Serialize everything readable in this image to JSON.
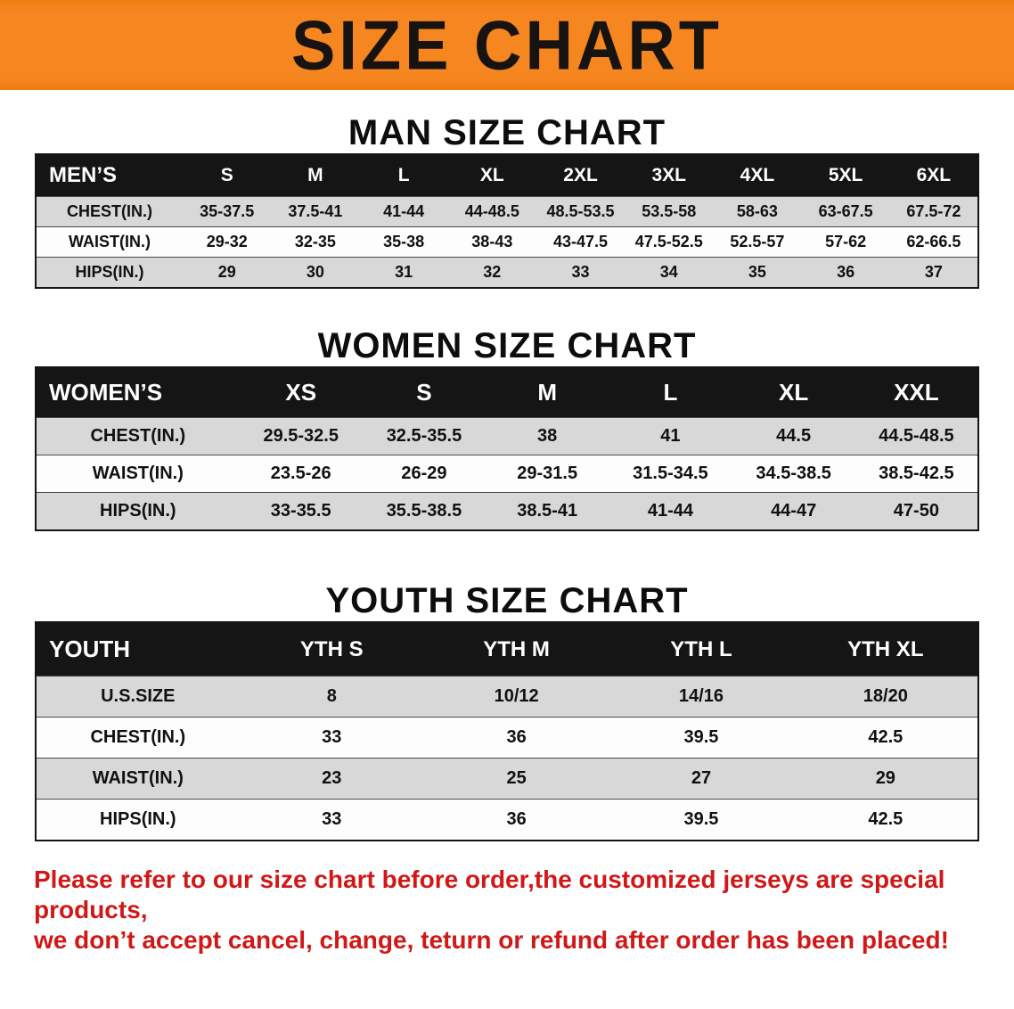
{
  "banner": {
    "title": "SIZE CHART"
  },
  "colors": {
    "banner_bg": "#F6861F",
    "table_header_bg": "#151515",
    "row_alt_gray": "#D8D8D8",
    "notice_red": "#D01818"
  },
  "sections": [
    {
      "heading": "MAN SIZE CHART",
      "table": {
        "header": [
          "MEN’S",
          "S",
          "M",
          "L",
          "XL",
          "2XL",
          "3XL",
          "4XL",
          "5XL",
          "6XL"
        ],
        "rows": [
          [
            "CHEST(IN.)",
            "35-37.5",
            "37.5-41",
            "41-44",
            "44-48.5",
            "48.5-53.5",
            "53.5-58",
            "58-63",
            "63-67.5",
            "67.5-72"
          ],
          [
            "WAIST(IN.)",
            "29-32",
            "32-35",
            "35-38",
            "38-43",
            "43-47.5",
            "47.5-52.5",
            "52.5-57",
            "57-62",
            "62-66.5"
          ],
          [
            "HIPS(IN.)",
            "29",
            "30",
            "31",
            "32",
            "33",
            "34",
            "35",
            "36",
            "37"
          ]
        ]
      }
    },
    {
      "heading": "WOMEN SIZE CHART",
      "table": {
        "header": [
          "WOMEN’S",
          "XS",
          "S",
          "M",
          "L",
          "XL",
          "XXL"
        ],
        "rows": [
          [
            "CHEST(IN.)",
            "29.5-32.5",
            "32.5-35.5",
            "38",
            "41",
            "44.5",
            "44.5-48.5"
          ],
          [
            "WAIST(IN.)",
            "23.5-26",
            "26-29",
            "29-31.5",
            "31.5-34.5",
            "34.5-38.5",
            "38.5-42.5"
          ],
          [
            "HIPS(IN.)",
            "33-35.5",
            "35.5-38.5",
            "38.5-41",
            "41-44",
            "44-47",
            "47-50"
          ]
        ]
      }
    },
    {
      "heading": "YOUTH SIZE CHART",
      "table": {
        "header": [
          "YOUTH",
          "YTH S",
          "YTH M",
          "YTH L",
          "YTH XL"
        ],
        "rows": [
          [
            "U.S.SIZE",
            "8",
            "10/12",
            "14/16",
            "18/20"
          ],
          [
            "CHEST(IN.)",
            "33",
            "36",
            "39.5",
            "42.5"
          ],
          [
            "WAIST(IN.)",
            "23",
            "25",
            "27",
            "29"
          ],
          [
            "HIPS(IN.)",
            "33",
            "36",
            "39.5",
            "42.5"
          ]
        ]
      }
    }
  ],
  "footer": {
    "line1": "Please refer to our size chart before order,the customized jerseys are special products,",
    "line2": "we don’t accept cancel, change, teturn or refund after order has been placed!"
  }
}
